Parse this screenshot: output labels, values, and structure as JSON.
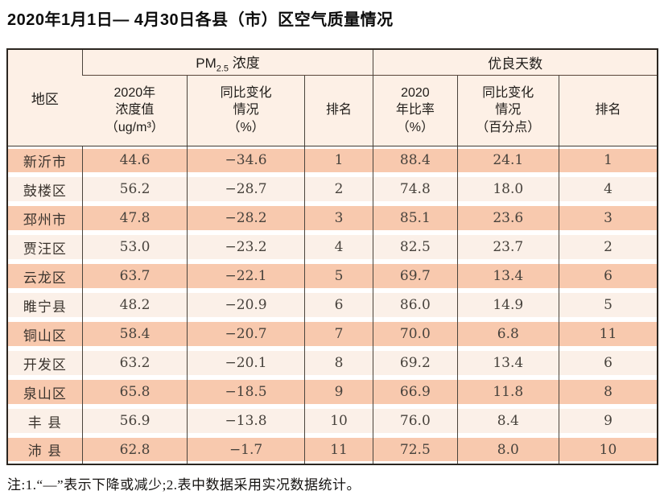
{
  "page": {
    "title": "2020年1月1日— 4月30日各县（市）区空气质量情况",
    "note": "注:1.“—”表示下降或减少;2.表中数据采用实况数据统计。"
  },
  "colors": {
    "row_odd_bg": "#f8c9ae",
    "row_even_bg": "#fbf0e8",
    "header_bg": "#fdf0e6",
    "border_dark": "#2b2620",
    "border_inner": "#4a443c",
    "text_data": "#47423c"
  },
  "table": {
    "header": {
      "region": "地区",
      "pm25_group": {
        "prefix": "PM",
        "sub": "2.5",
        "suffix": " 浓度"
      },
      "good_days_group": "优良天数",
      "pm_col_value": "2020年\n浓度值\n（ug/m³）",
      "pm_col_change": "同比变化\n情况\n（%）",
      "pm_col_rank": "排名",
      "good_col_rate": "2020\n年比率\n（%）",
      "good_col_change": "同比变化\n情况\n（百分点）",
      "good_col_rank": "排名"
    },
    "rows": [
      [
        "新沂市",
        "44.6",
        "−34.6",
        "1",
        "88.4",
        "24.1",
        "1"
      ],
      [
        "鼓楼区",
        "56.2",
        "−28.7",
        "2",
        "74.8",
        "18.0",
        "4"
      ],
      [
        "邳州市",
        "47.8",
        "−28.2",
        "3",
        "85.1",
        "23.6",
        "3"
      ],
      [
        "贾汪区",
        "53.0",
        "−23.2",
        "4",
        "82.5",
        "23.7",
        "2"
      ],
      [
        "云龙区",
        "63.7",
        "−22.1",
        "5",
        "69.7",
        "13.4",
        "6"
      ],
      [
        "睢宁县",
        "48.2",
        "−20.9",
        "6",
        "86.0",
        "14.9",
        "5"
      ],
      [
        "铜山区",
        "58.4",
        "−20.7",
        "7",
        "70.0",
        "6.8",
        "11"
      ],
      [
        "开发区",
        "63.2",
        "−20.1",
        "8",
        "69.2",
        "13.4",
        "6"
      ],
      [
        "泉山区",
        "65.8",
        "−18.5",
        "9",
        "66.9",
        "11.8",
        "8"
      ],
      [
        "丰 县",
        "56.9",
        "−13.8",
        "10",
        "76.0",
        "8.4",
        "9"
      ],
      [
        "沛 县",
        "62.8",
        "−1.7",
        "11",
        "72.5",
        "8.0",
        "10"
      ]
    ]
  }
}
